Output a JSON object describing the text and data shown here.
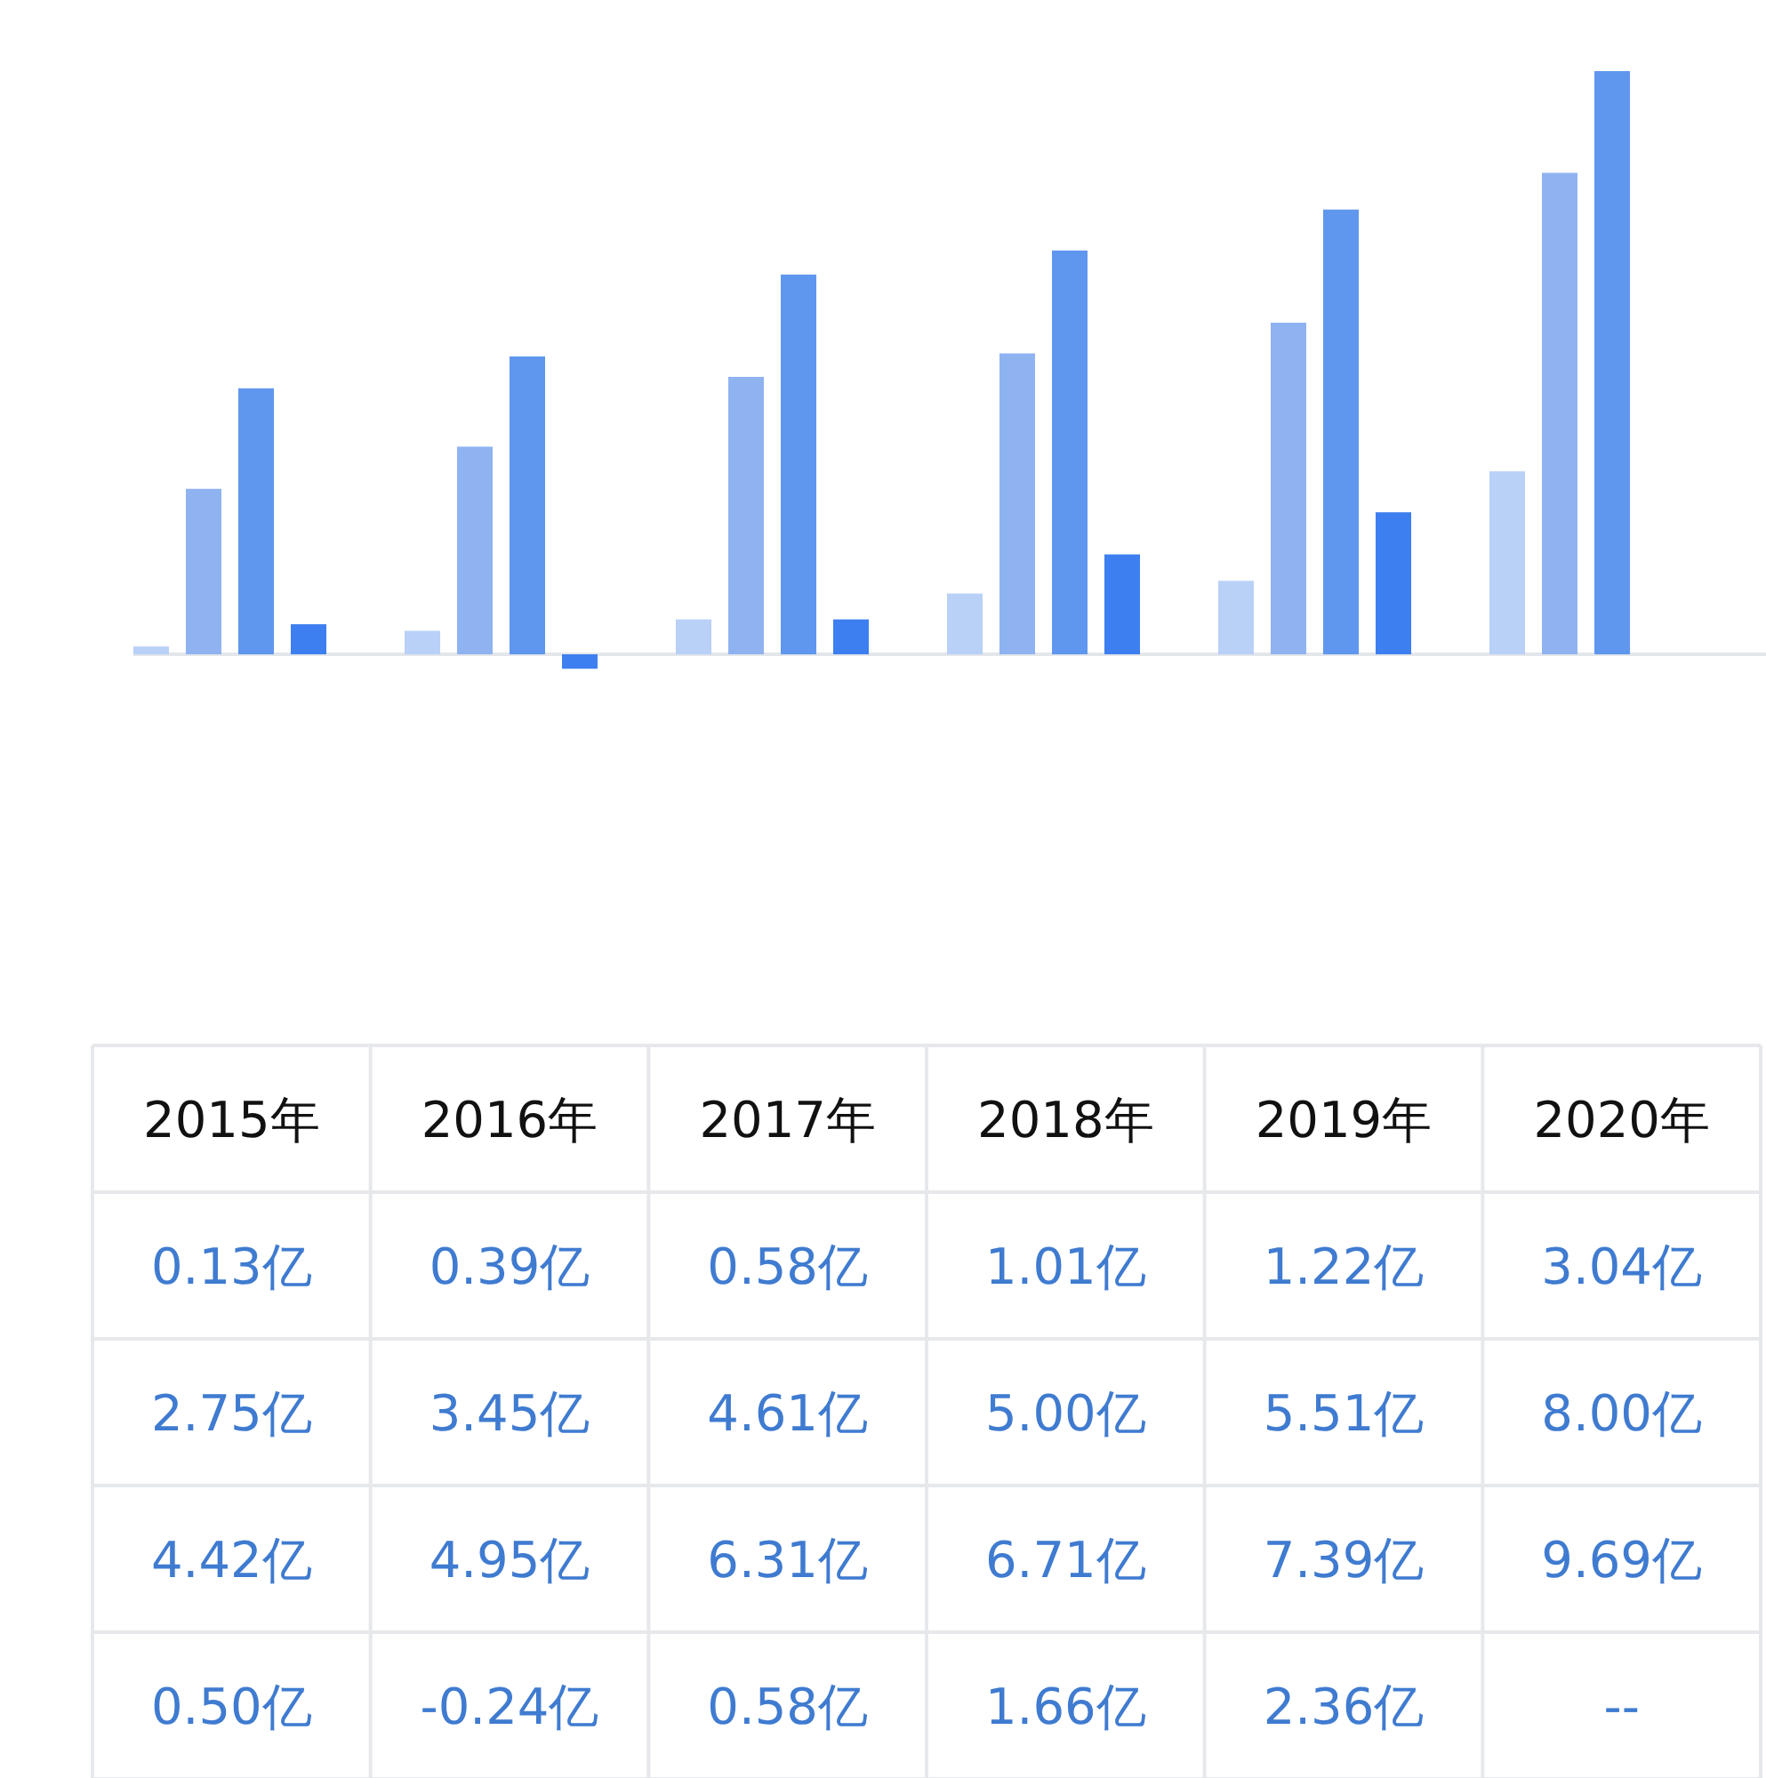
{
  "chart_data": {
    "type": "bar",
    "categories": [
      "2015年",
      "2016年",
      "2017年",
      "2018年",
      "2019年",
      "2020年"
    ],
    "series": [
      {
        "color": "#b9d0f7",
        "values": [
          0.13,
          0.39,
          0.58,
          1.01,
          1.22,
          3.04
        ],
        "value_labels": [
          "0.13亿",
          "0.39亿",
          "0.58亿",
          "1.01亿",
          "1.22亿",
          "3.04亿"
        ]
      },
      {
        "color": "#8fb3f1",
        "values": [
          2.75,
          3.45,
          4.61,
          5.0,
          5.51,
          8.0
        ],
        "value_labels": [
          "2.75亿",
          "3.45亿",
          "4.61亿",
          "5.00亿",
          "5.51亿",
          "8.00亿"
        ]
      },
      {
        "color": "#5f97ef",
        "values": [
          4.42,
          4.95,
          6.31,
          6.71,
          7.39,
          9.69
        ],
        "value_labels": [
          "4.42亿",
          "4.95亿",
          "6.31亿",
          "6.71亿",
          "7.39亿",
          "9.69亿"
        ]
      },
      {
        "color": "#3d7ff0",
        "values": [
          0.5,
          -0.24,
          0.58,
          1.66,
          2.36,
          null
        ],
        "value_labels": [
          "0.50亿",
          "-0.24亿",
          "0.58亿",
          "1.66亿",
          "2.36亿",
          "--"
        ]
      }
    ]
  }
}
